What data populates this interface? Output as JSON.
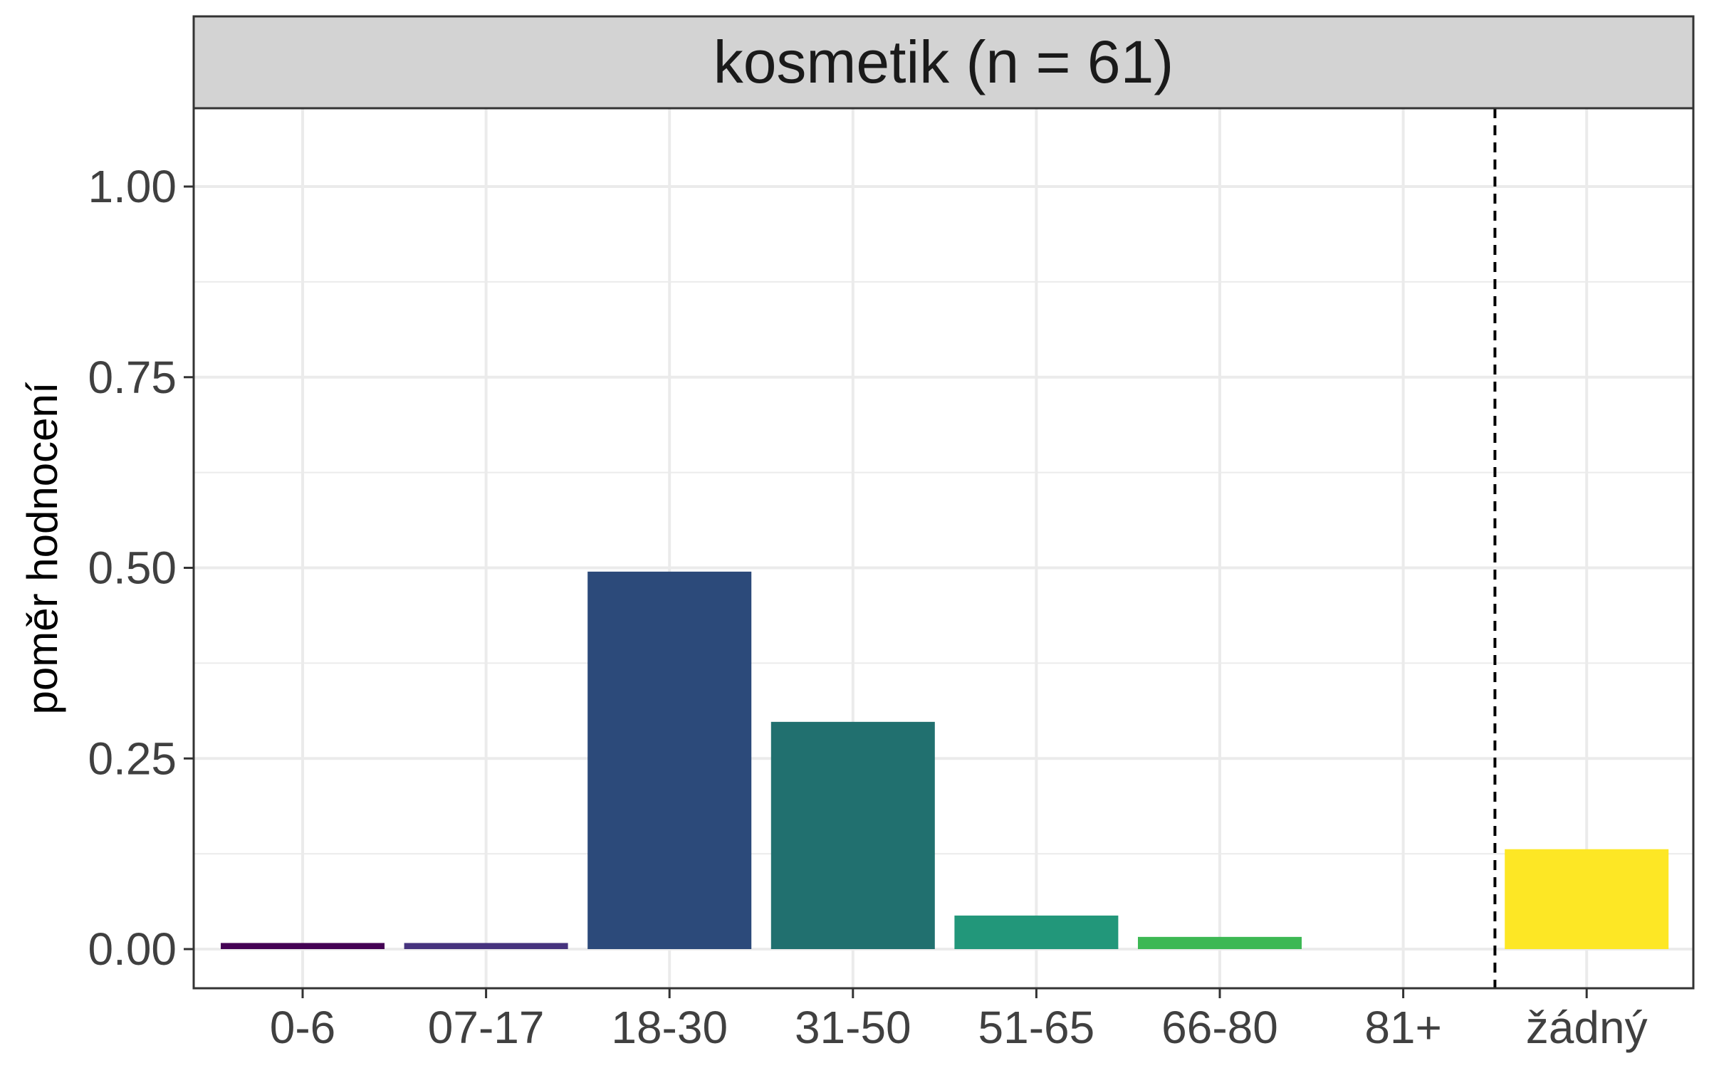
{
  "chart_data": {
    "type": "bar",
    "title": "",
    "facet_label": "kosmetik (n = 61)",
    "xlabel": "",
    "ylabel": "poměr hodnocení",
    "categories": [
      "0-6",
      "07-17",
      "18-30",
      "31-50",
      "51-65",
      "66-80",
      "81+",
      "žádný"
    ],
    "values": [
      0.008,
      0.008,
      0.495,
      0.298,
      0.044,
      0.016,
      0.0,
      0.131
    ],
    "bar_colors": [
      "#440154",
      "#46337E",
      "#2C4A7A",
      "#21706F",
      "#22977A",
      "#3DB854",
      "#A0DA39",
      "#FDE725"
    ],
    "ylim": [
      -0.05,
      1.1
    ],
    "yticks": [
      0.0,
      0.25,
      0.5,
      0.75,
      1.0
    ],
    "ytick_labels": [
      "0.00",
      "0.25",
      "0.50",
      "0.75",
      "1.00"
    ],
    "reference_line": {
      "style": "dashed",
      "between": [
        "81+",
        "žádný"
      ]
    },
    "grid": true,
    "legend": "none",
    "colors": {
      "strip_background": "#D3D3D3",
      "grid": "#EBEBEB",
      "border": "#333333",
      "tick_text": "#404040"
    }
  }
}
